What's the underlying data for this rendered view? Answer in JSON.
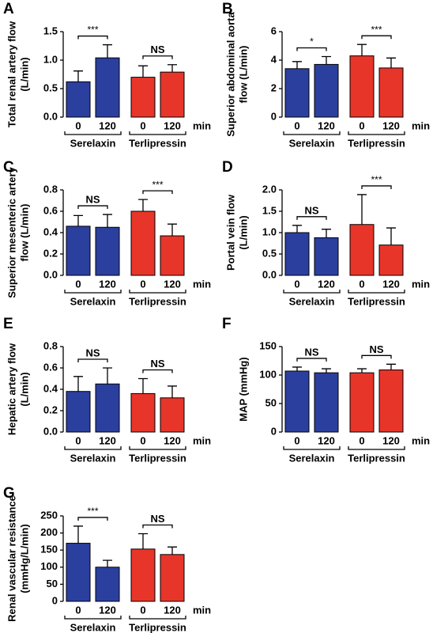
{
  "chart_data": [
    {
      "type": "bar",
      "panel": "A",
      "ylabel": [
        "Total renal artery flow",
        "(L/min)"
      ],
      "x_unit": "min",
      "ylim": [
        0,
        1.5
      ],
      "yticks": [
        {
          "value": 0,
          "label": "0.0"
        },
        0.5,
        {
          "value": 1,
          "label": "1.0"
        },
        1.5
      ],
      "groups": [
        {
          "name": "Serelaxin",
          "color": "#2b3f9f",
          "significance": "***",
          "categories": [
            "0",
            "120"
          ],
          "values": [
            0.62,
            1.04
          ],
          "errors": [
            0.19,
            0.23
          ]
        },
        {
          "name": "Terlipressin",
          "color": "#e8352a",
          "significance": "NS",
          "categories": [
            "0",
            "120"
          ],
          "values": [
            0.7,
            0.79
          ],
          "errors": [
            0.2,
            0.13
          ]
        }
      ]
    },
    {
      "type": "bar",
      "panel": "B",
      "ylabel": [
        "Superior abdominal aorta",
        "flow (L/min)"
      ],
      "x_unit": "min",
      "ylim": [
        0,
        6
      ],
      "yticks": [
        0,
        2,
        4,
        6
      ],
      "groups": [
        {
          "name": "Serelaxin",
          "color": "#2b3f9f",
          "significance": "*",
          "categories": [
            "0",
            "120"
          ],
          "values": [
            3.4,
            3.7
          ],
          "errors": [
            0.5,
            0.55
          ]
        },
        {
          "name": "Terlipressin",
          "color": "#e8352a",
          "significance": "***",
          "categories": [
            "0",
            "120"
          ],
          "values": [
            4.3,
            3.45
          ],
          "errors": [
            0.8,
            0.7
          ]
        }
      ]
    },
    {
      "type": "bar",
      "panel": "C",
      "ylabel": [
        "Superior mesenteric artery",
        "flow (L/min)"
      ],
      "x_unit": "min",
      "ylim": [
        0,
        0.8
      ],
      "yticks": [
        {
          "value": 0,
          "label": "0.0"
        },
        0.2,
        0.4,
        0.6,
        0.8
      ],
      "groups": [
        {
          "name": "Serelaxin",
          "color": "#2b3f9f",
          "significance": "NS",
          "categories": [
            "0",
            "120"
          ],
          "values": [
            0.46,
            0.45
          ],
          "errors": [
            0.1,
            0.12
          ]
        },
        {
          "name": "Terlipressin",
          "color": "#e8352a",
          "significance": "***",
          "categories": [
            "0",
            "120"
          ],
          "values": [
            0.6,
            0.37
          ],
          "errors": [
            0.11,
            0.11
          ]
        }
      ]
    },
    {
      "type": "bar",
      "panel": "D",
      "ylabel": [
        "Portal vein flow",
        "(L/min)"
      ],
      "x_unit": "min",
      "ylim": [
        0,
        2
      ],
      "yticks": [
        {
          "value": 0,
          "label": "0.0"
        },
        0.5,
        {
          "value": 1,
          "label": "1.0"
        },
        1.5,
        {
          "value": 2,
          "label": "2.0"
        }
      ],
      "groups": [
        {
          "name": "Serelaxin",
          "color": "#2b3f9f",
          "significance": "NS",
          "categories": [
            "0",
            "120"
          ],
          "values": [
            1.0,
            0.88
          ],
          "errors": [
            0.17,
            0.2
          ]
        },
        {
          "name": "Terlipressin",
          "color": "#e8352a",
          "significance": "***",
          "categories": [
            "0",
            "120"
          ],
          "values": [
            1.19,
            0.71
          ],
          "errors": [
            0.7,
            0.4
          ]
        }
      ]
    },
    {
      "type": "bar",
      "panel": "E",
      "ylabel": [
        "Hepatic artery flow",
        "(L/min)"
      ],
      "x_unit": "min",
      "ylim": [
        0,
        0.8
      ],
      "yticks": [
        {
          "value": 0,
          "label": "0.0"
        },
        0.2,
        0.4,
        0.6,
        0.8
      ],
      "groups": [
        {
          "name": "Serelaxin",
          "color": "#2b3f9f",
          "significance": "NS",
          "categories": [
            "0",
            "120"
          ],
          "values": [
            0.38,
            0.45
          ],
          "errors": [
            0.14,
            0.15
          ]
        },
        {
          "name": "Terlipressin",
          "color": "#e8352a",
          "significance": "NS",
          "categories": [
            "0",
            "120"
          ],
          "values": [
            0.36,
            0.32
          ],
          "errors": [
            0.14,
            0.11
          ]
        }
      ]
    },
    {
      "type": "bar",
      "panel": "F",
      "ylabel": [
        "MAP (mmHg)"
      ],
      "x_unit": "min",
      "ylim": [
        0,
        150
      ],
      "yticks": [
        0,
        50,
        100,
        150
      ],
      "groups": [
        {
          "name": "Serelaxin",
          "color": "#2b3f9f",
          "significance": "NS",
          "categories": [
            "0",
            "120"
          ],
          "values": [
            107,
            104
          ],
          "errors": [
            7,
            7
          ]
        },
        {
          "name": "Terlipressin",
          "color": "#e8352a",
          "significance": "NS",
          "categories": [
            "0",
            "120"
          ],
          "values": [
            104,
            109
          ],
          "errors": [
            7,
            10
          ]
        }
      ]
    },
    {
      "type": "bar",
      "panel": "G",
      "ylabel": [
        "Renal vascular resistance",
        "(mmHg/L/min)"
      ],
      "x_unit": "min",
      "ylim": [
        0,
        250
      ],
      "yticks": [
        0,
        50,
        100,
        150,
        200,
        250
      ],
      "groups": [
        {
          "name": "Serelaxin",
          "color": "#2b3f9f",
          "significance": "***",
          "categories": [
            "0",
            "120"
          ],
          "values": [
            170,
            100
          ],
          "errors": [
            50,
            20
          ]
        },
        {
          "name": "Terlipressin",
          "color": "#e8352a",
          "significance": "NS",
          "categories": [
            "0",
            "120"
          ],
          "values": [
            153,
            137
          ],
          "errors": [
            45,
            22
          ]
        }
      ]
    }
  ]
}
